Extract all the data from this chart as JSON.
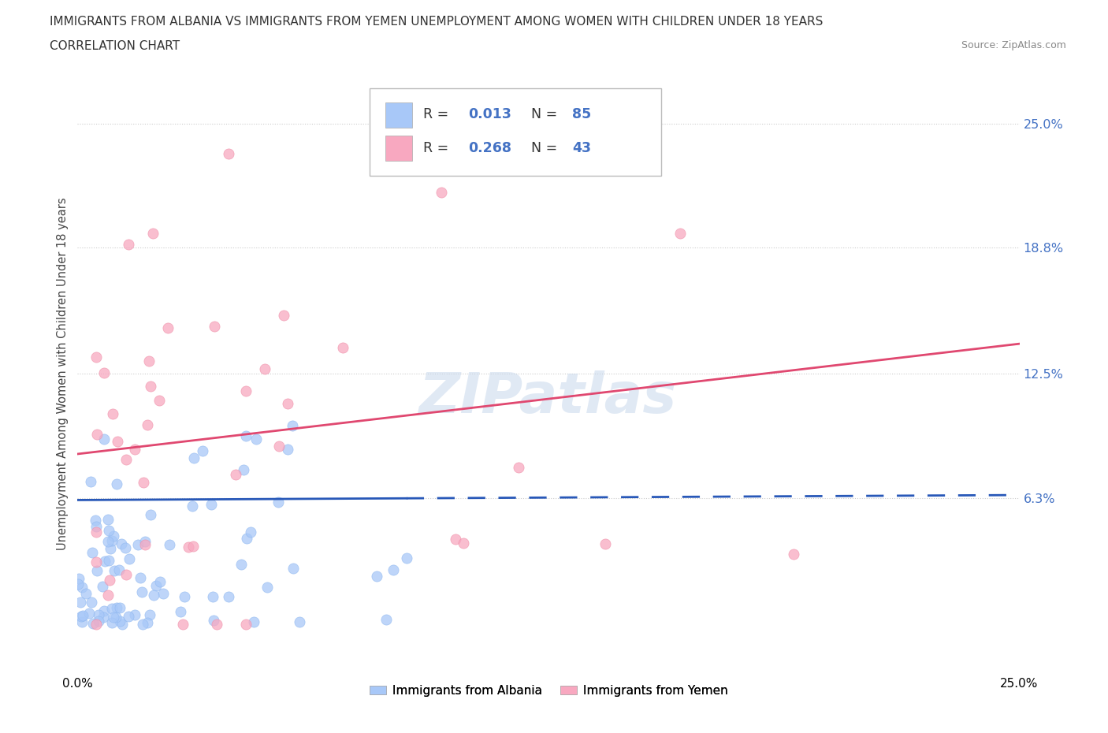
{
  "title_line1": "IMMIGRANTS FROM ALBANIA VS IMMIGRANTS FROM YEMEN UNEMPLOYMENT AMONG WOMEN WITH CHILDREN UNDER 18 YEARS",
  "title_line2": "CORRELATION CHART",
  "source": "Source: ZipAtlas.com",
  "ylabel": "Unemployment Among Women with Children Under 18 years",
  "ytick_labels": [
    "25.0%",
    "18.8%",
    "12.5%",
    "6.3%"
  ],
  "ytick_values": [
    0.25,
    0.188,
    0.125,
    0.063
  ],
  "xlim": [
    0.0,
    0.25
  ],
  "ylim": [
    -0.025,
    0.275
  ],
  "legend_r_albania": "0.013",
  "legend_n_albania": "85",
  "legend_r_yemen": "0.268",
  "legend_n_yemen": "43",
  "albania_color": "#a8c8f8",
  "albania_edge_color": "#90b8f0",
  "yemen_color": "#f8a8c0",
  "yemen_edge_color": "#f090a8",
  "albania_line_color": "#2858b8",
  "yemen_line_color": "#e04870",
  "background_color": "#ffffff",
  "grid_color": "#cccccc",
  "watermark_color": "#c8d8ec",
  "right_tick_color": "#4472c4",
  "title_color": "#333333",
  "source_color": "#888888"
}
